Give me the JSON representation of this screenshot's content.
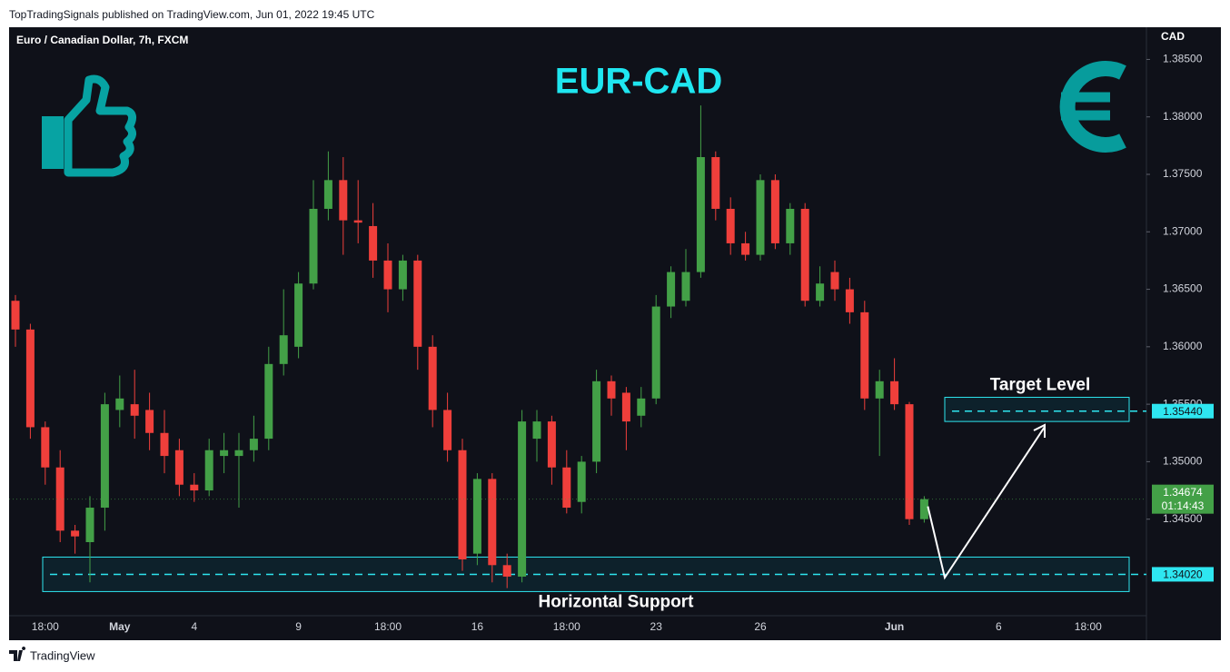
{
  "header": "TopTradingSignals published on TradingView.com, Jun 01, 2022 19:45 UTC",
  "footer": "TradingView",
  "chart_data": {
    "type": "candlestick",
    "title": "EUR-CAD",
    "symbol": "Euro / Canadian Dollar, 7h, FXCM",
    "currency": "CAD",
    "up_color": "#43a047",
    "down_color": "#ef3f3b",
    "categories": [
      null,
      null,
      "18:00",
      null,
      null,
      null,
      null,
      "May",
      null,
      null,
      null,
      null,
      "4",
      null,
      null,
      null,
      null,
      null,
      null,
      "9",
      null,
      null,
      null,
      null,
      null,
      "18:00",
      null,
      null,
      null,
      null,
      null,
      "16",
      null,
      null,
      null,
      null,
      null,
      "18:00",
      null,
      null,
      null,
      null,
      null,
      "23",
      null,
      null,
      null,
      null,
      null,
      null,
      "26",
      null,
      null,
      null,
      null,
      null,
      null,
      null,
      null,
      "Jun",
      null,
      null,
      null,
      null,
      null,
      null,
      "6",
      null,
      null,
      null,
      null,
      null,
      "18:00",
      null,
      null,
      null
    ],
    "open": [
      1.364,
      1.3615,
      1.353,
      1.3495,
      1.344,
      1.343,
      1.346,
      1.3545,
      1.355,
      1.3545,
      1.3525,
      1.351,
      1.348,
      1.3475,
      1.3505,
      1.3505,
      1.351,
      1.352,
      1.3585,
      1.36,
      1.3655,
      1.372,
      1.3745,
      1.371,
      1.3705,
      1.3675,
      1.365,
      1.3675,
      1.36,
      1.3545,
      1.351,
      1.342,
      1.3485,
      1.341,
      1.34,
      1.352,
      1.3535,
      1.3495,
      1.3465,
      1.35,
      1.357,
      1.356,
      1.354,
      1.3555,
      1.3635,
      1.364,
      1.3665,
      1.3765,
      1.372,
      1.369,
      1.368,
      1.3745,
      1.369,
      1.372,
      1.364,
      1.3665,
      1.365,
      1.363,
      1.3555,
      1.357,
      1.355,
      1.345,
      null,
      null,
      null,
      null,
      null,
      null,
      null,
      null,
      null,
      null,
      null,
      null,
      null,
      null
    ],
    "high": [
      1.3645,
      1.362,
      1.3535,
      1.351,
      1.3445,
      1.347,
      1.356,
      1.3575,
      1.358,
      1.356,
      1.3545,
      1.352,
      1.349,
      1.352,
      1.3525,
      1.3525,
      1.354,
      1.36,
      1.365,
      1.3665,
      1.3745,
      1.377,
      1.3765,
      1.3745,
      1.3725,
      1.369,
      1.368,
      1.368,
      1.361,
      1.356,
      1.352,
      1.349,
      1.349,
      1.342,
      1.3545,
      1.3545,
      1.354,
      1.351,
      1.3505,
      1.358,
      1.3575,
      1.3565,
      1.3565,
      1.3645,
      1.367,
      1.3685,
      1.381,
      1.377,
      1.373,
      1.37,
      1.375,
      1.375,
      1.3725,
      1.3725,
      1.367,
      1.3675,
      1.366,
      1.364,
      1.358,
      1.359,
      1.3552,
      1.347,
      null,
      null,
      null,
      null,
      null,
      null,
      null,
      null,
      null,
      null,
      null,
      null,
      null,
      null
    ],
    "low": [
      1.36,
      1.352,
      1.348,
      1.343,
      1.342,
      1.3395,
      1.344,
      1.353,
      1.352,
      1.351,
      1.349,
      1.347,
      1.3465,
      1.347,
      1.349,
      1.346,
      1.35,
      1.351,
      1.3575,
      1.359,
      1.365,
      1.371,
      1.368,
      1.369,
      1.366,
      1.363,
      1.364,
      1.358,
      1.353,
      1.35,
      1.3405,
      1.341,
      1.3395,
      1.339,
      1.3395,
      1.35,
      1.348,
      1.3455,
      1.3455,
      1.349,
      1.354,
      1.351,
      1.353,
      1.355,
      1.3625,
      1.3635,
      1.366,
      1.371,
      1.368,
      1.3675,
      1.3675,
      1.3685,
      1.368,
      1.3635,
      1.3635,
      1.364,
      1.362,
      1.3545,
      1.3505,
      1.3545,
      1.3445,
      1.3447,
      null,
      null,
      null,
      null,
      null,
      null,
      null,
      null,
      null,
      null,
      null,
      null,
      null,
      null
    ],
    "close": [
      1.3615,
      1.353,
      1.3495,
      1.344,
      1.3435,
      1.346,
      1.355,
      1.3555,
      1.354,
      1.3525,
      1.3505,
      1.348,
      1.3475,
      1.351,
      1.351,
      1.351,
      1.352,
      1.3585,
      1.361,
      1.3655,
      1.372,
      1.3745,
      1.371,
      1.3708,
      1.3675,
      1.365,
      1.3675,
      1.36,
      1.3545,
      1.351,
      1.3415,
      1.3485,
      1.341,
      1.34,
      1.3535,
      1.3535,
      1.3495,
      1.346,
      1.35,
      1.357,
      1.3555,
      1.3535,
      1.3555,
      1.3635,
      1.3665,
      1.3665,
      1.3765,
      1.372,
      1.369,
      1.368,
      1.3745,
      1.369,
      1.372,
      1.364,
      1.3655,
      1.365,
      1.363,
      1.3555,
      1.357,
      1.355,
      1.345,
      1.34674,
      null,
      null,
      null,
      null,
      null,
      null,
      null,
      null,
      null,
      null,
      null,
      null,
      null,
      null
    ],
    "ylim": [
      1.3366,
      1.3878
    ],
    "yticks": [
      {
        "value": 1.345,
        "label": "1.34500"
      },
      {
        "value": 1.35,
        "label": "1.35000"
      },
      {
        "value": 1.355,
        "label": "1.35500"
      },
      {
        "value": 1.36,
        "label": "1.36000"
      },
      {
        "value": 1.365,
        "label": "1.36500"
      },
      {
        "value": 1.37,
        "label": "1.37000"
      },
      {
        "value": 1.375,
        "label": "1.37500"
      },
      {
        "value": 1.38,
        "label": "1.38000"
      },
      {
        "value": 1.385,
        "label": "1.38500"
      }
    ],
    "last_price": {
      "value": 1.34674,
      "label": "1.34674",
      "countdown": "01:14:43"
    },
    "zones": [
      {
        "name": "Horizontal Support",
        "range": [
          1.3387,
          1.3417
        ],
        "level": {
          "value": 1.3402,
          "label": "1.34020"
        }
      },
      {
        "name": "Target Level",
        "range": [
          1.3535,
          1.3556
        ],
        "level": {
          "value": 1.3544,
          "label": "1.35440"
        }
      }
    ]
  }
}
